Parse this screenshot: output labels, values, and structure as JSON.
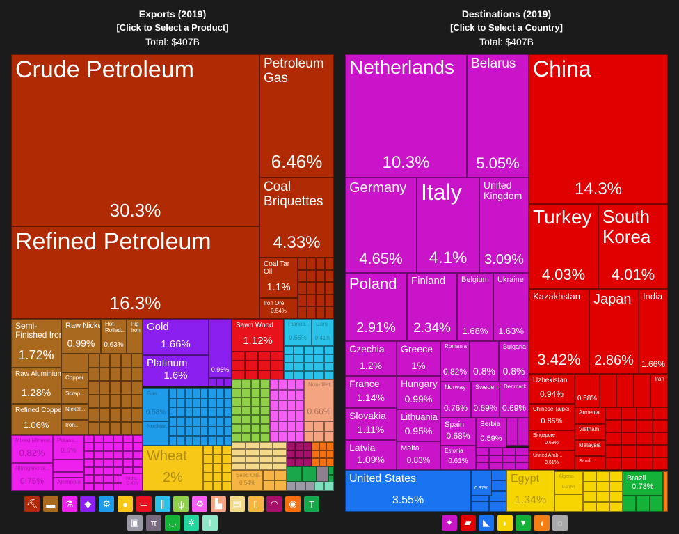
{
  "exports": {
    "title": "Exports (2019)",
    "subtitle": "[Click to Select a Product]",
    "total": "Total: $407B",
    "products": {
      "crude": {
        "name": "Crude Petroleum",
        "pct": "30.3%"
      },
      "refined": {
        "name": "Refined Petroleum",
        "pct": "16.3%"
      },
      "petgas": {
        "name": "Petroleum\nGas",
        "pct": "6.46%"
      },
      "coal": {
        "name": "Coal\nBriquettes",
        "pct": "4.33%"
      },
      "coaltar": {
        "name": "Coal Tar\nOil",
        "pct": "1.1%"
      },
      "ironore": {
        "name": "Iron Ore",
        "pct": "0.54%"
      },
      "semi": {
        "name": "Semi-\nFinished Iron",
        "pct": "1.72%"
      },
      "rawal": {
        "name": "Raw Aluminium",
        "pct": "1.28%"
      },
      "refcu": {
        "name": "Refined Copper",
        "pct": "1.06%"
      },
      "rawni": {
        "name": "Raw Nickel",
        "pct": "0.99%"
      },
      "hotroll": {
        "name": "Hot-\nRolled...",
        "pct": "0.63%"
      },
      "pigiron": {
        "name": "Pig\nIron"
      },
      "copper": {
        "name": "Copper..."
      },
      "scrap": {
        "name": "Scrap..."
      },
      "nickel": {
        "name": "Nickel..."
      },
      "iron": {
        "name": "Iron..."
      },
      "gold": {
        "name": "Gold",
        "pct": "1.66%"
      },
      "platinum": {
        "name": "Platinum",
        "pct": "1.6%"
      },
      "purple3": {
        "pct": "0.96%"
      },
      "gas": {
        "name": "Gas...",
        "pct": "0.58%"
      },
      "nuclear": {
        "name": "Nuclear..."
      },
      "sawnwood": {
        "name": "Sawn Wood",
        "pct": "1.12%"
      },
      "pianos": {
        "name": "Pianos...",
        "pct": "0.55%"
      },
      "cars": {
        "name": "Cars",
        "pct": "0.41%"
      },
      "nonfillet": {
        "name": "Non-fillet...",
        "pct": "0.66%"
      },
      "wheat": {
        "name": "Wheat",
        "pct": "2%"
      },
      "seedoils": {
        "name": "Seed Oils",
        "pct": "0.54%"
      },
      "mixedmin": {
        "name": "Mixed Mineral...",
        "pct": "0.82%"
      },
      "potass": {
        "name": "Potass...",
        "pct": "0.6%"
      },
      "nitrogen": {
        "name": "Nitrogenous...",
        "pct": "0.75%"
      },
      "ammonia": {
        "name": "Ammonia"
      },
      "nitro2": {
        "name": "Nitro...",
        "pct": "0.4%"
      }
    },
    "icons": [
      "mining-icon",
      "anvil-icon",
      "flask-icon",
      "diamond-icon",
      "gear-icon",
      "fruit-icon",
      "machine-icon",
      "road-icon",
      "wheat-icon",
      "recycle-icon",
      "animal-icon",
      "paper-icon",
      "drink-icon",
      "gauge-icon",
      "meat-icon",
      "shirt-icon",
      "box-icon",
      "easel-icon",
      "shoe-icon",
      "leather-icon",
      "pencils-icon"
    ],
    "icon_colors": [
      "#b02a03",
      "#a9691f",
      "#ee20ee",
      "#8a1ff0",
      "#1e9be9",
      "#f7c817",
      "#e8121b",
      "#2ac2e8",
      "#8ed04a",
      "#f55ff5",
      "#f4a480",
      "#f4d98a",
      "#f5b444",
      "#a5106a",
      "#f57010",
      "#1aa64a",
      "#9a9aa6",
      "#7a6a80",
      "#15b23a",
      "#22d6a0",
      "#8ee8c8"
    ]
  },
  "destinations": {
    "title": "Destinations (2019)",
    "subtitle": "[Click to Select a Country]",
    "total": "Total: $407B",
    "countries": {
      "netherlands": {
        "name": "Netherlands",
        "pct": "10.3%"
      },
      "belarus": {
        "name": "Belarus",
        "pct": "5.05%"
      },
      "germany": {
        "name": "Germany",
        "pct": "4.65%"
      },
      "italy": {
        "name": "Italy",
        "pct": "4.1%"
      },
      "uk": {
        "name": "United\nKingdom",
        "pct": "3.09%"
      },
      "poland": {
        "name": "Poland",
        "pct": "2.91%"
      },
      "finland": {
        "name": "Finland",
        "pct": "2.34%"
      },
      "belgium": {
        "name": "Belgium",
        "pct": "1.68%"
      },
      "ukraine": {
        "name": "Ukraine",
        "pct": "1.63%"
      },
      "czechia": {
        "name": "Czechia",
        "pct": "1.2%"
      },
      "greece": {
        "name": "Greece",
        "pct": "1%"
      },
      "romania": {
        "name": "Romania",
        "pct": "0.82%"
      },
      "unl08": {
        "pct": "0.8%"
      },
      "bulgaria": {
        "name": "Bulgaria",
        "pct": "0.8%"
      },
      "france": {
        "name": "France",
        "pct": "1.14%"
      },
      "hungary": {
        "name": "Hungary",
        "pct": "0.99%"
      },
      "norway": {
        "name": "Norway",
        "pct": "0.76%"
      },
      "sweden": {
        "name": "Sweden",
        "pct": "0.69%"
      },
      "denmark": {
        "name": "Denmark",
        "pct": "0.69%"
      },
      "slovakia": {
        "name": "Slovakia",
        "pct": "1.11%"
      },
      "lithuania": {
        "name": "Lithuania",
        "pct": "0.95%"
      },
      "spain": {
        "name": "Spain",
        "pct": "0.68%"
      },
      "serbia": {
        "name": "Serbia",
        "pct": "0.59%"
      },
      "latvia": {
        "name": "Latvia",
        "pct": "1.09%"
      },
      "malta": {
        "name": "Malta",
        "pct": "0.83%"
      },
      "estonia": {
        "name": "Estonia",
        "pct": "0.61%"
      },
      "china": {
        "name": "China",
        "pct": "14.3%"
      },
      "turkey": {
        "name": "Turkey",
        "pct": "4.03%"
      },
      "skorea": {
        "name": "South\nKorea",
        "pct": "4.01%"
      },
      "kazakhstan": {
        "name": "Kazakhstan",
        "pct": "3.42%"
      },
      "japan": {
        "name": "Japan",
        "pct": "2.86%"
      },
      "india": {
        "name": "India",
        "pct": "1.66%"
      },
      "uzbekistan": {
        "name": "Uzbekistan",
        "pct": "0.94%"
      },
      "unl058": {
        "pct": "0.58%"
      },
      "iran": {
        "name": "Iran"
      },
      "taipei": {
        "name": "Chinese Taipei",
        "pct": "0.85%"
      },
      "singapore": {
        "name": "Singapore",
        "pct": "0.63%"
      },
      "uae": {
        "name": "United Arab...",
        "pct": "0.61%"
      },
      "armenia": {
        "name": "Armenia"
      },
      "vietnam": {
        "name": "Vietnam"
      },
      "malaysia": {
        "name": "Malaysia"
      },
      "saudi": {
        "name": "Saudi..."
      },
      "us": {
        "name": "United States",
        "pct": "3.55%"
      },
      "unl037": {
        "pct": "0.37%"
      },
      "egypt": {
        "name": "Egypt",
        "pct": "1.34%"
      },
      "algeria": {
        "name": "Algeria",
        "pct": "0.39%"
      },
      "brazil": {
        "name": "Brazil",
        "pct": "0.73%"
      }
    },
    "icons": [
      "europe-icon",
      "asia-icon",
      "north-america-icon",
      "africa-icon",
      "south-america-icon",
      "oceania-icon",
      "other-icon"
    ],
    "icon_colors": [
      "#c914c9",
      "#e00000",
      "#1a73f0",
      "#f7d500",
      "#15b23a",
      "#f57f17",
      "#aaaaaa"
    ]
  },
  "colors": {
    "fuels": "#b02a03",
    "metals": "#a9691f",
    "chemicals": "#ee20ee",
    "precious": "#8a1ff0",
    "machines": "#1e9be9",
    "veg": "#f7c817",
    "wood": "#e8121b",
    "transport": "#2ac2e8",
    "europe": "#c914c9",
    "asia": "#e00000",
    "namerica": "#1a73f0",
    "africa": "#f7d500",
    "samerica": "#15b23a"
  }
}
